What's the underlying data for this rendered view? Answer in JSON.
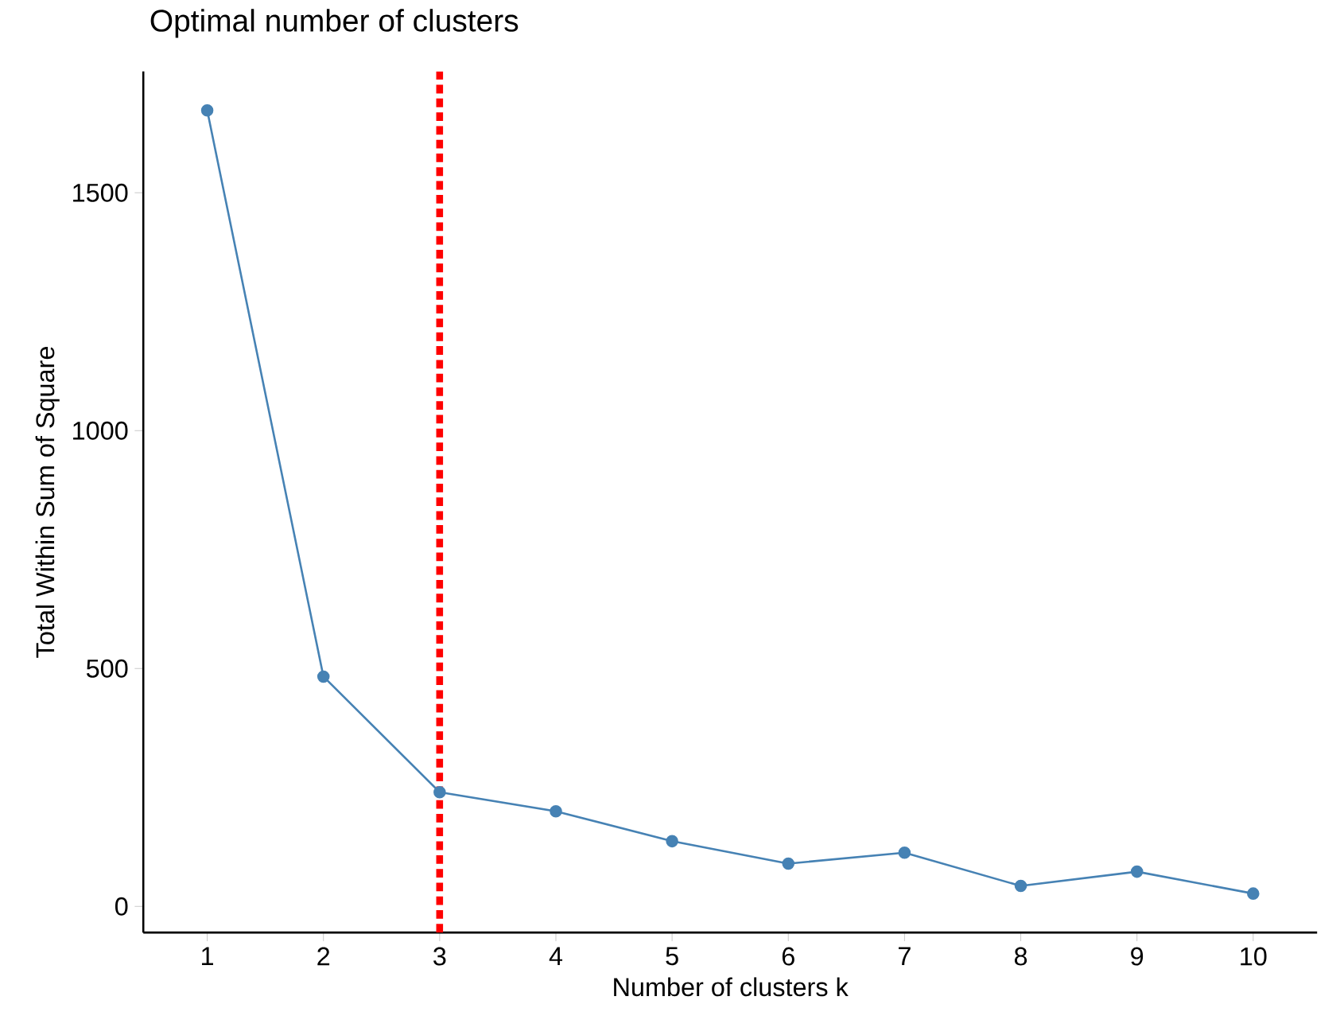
{
  "chart_data": {
    "type": "line",
    "title": "Optimal number of clusters",
    "xlabel": "Number of clusters k",
    "ylabel": "Total Within Sum of Square",
    "x": [
      1,
      2,
      3,
      4,
      5,
      6,
      7,
      8,
      9,
      10
    ],
    "series": [
      {
        "color": "#4682b4",
        "values": [
          1673,
          483,
          240,
          200,
          137,
          90,
          113,
          43,
          73,
          27
        ]
      }
    ],
    "xlim": [
      0.45,
      10.55
    ],
    "ylim": [
      -55,
      1755
    ],
    "xticks": [
      1,
      2,
      3,
      4,
      5,
      6,
      7,
      8,
      9,
      10
    ],
    "yticks": [
      0,
      500,
      1000,
      1500
    ],
    "ref_lines": [
      {
        "axis": "x",
        "value": 3,
        "color": "#ff0000",
        "line_style": "dotted"
      }
    ],
    "grid": false,
    "marker": "circle",
    "line_style": "solid"
  }
}
